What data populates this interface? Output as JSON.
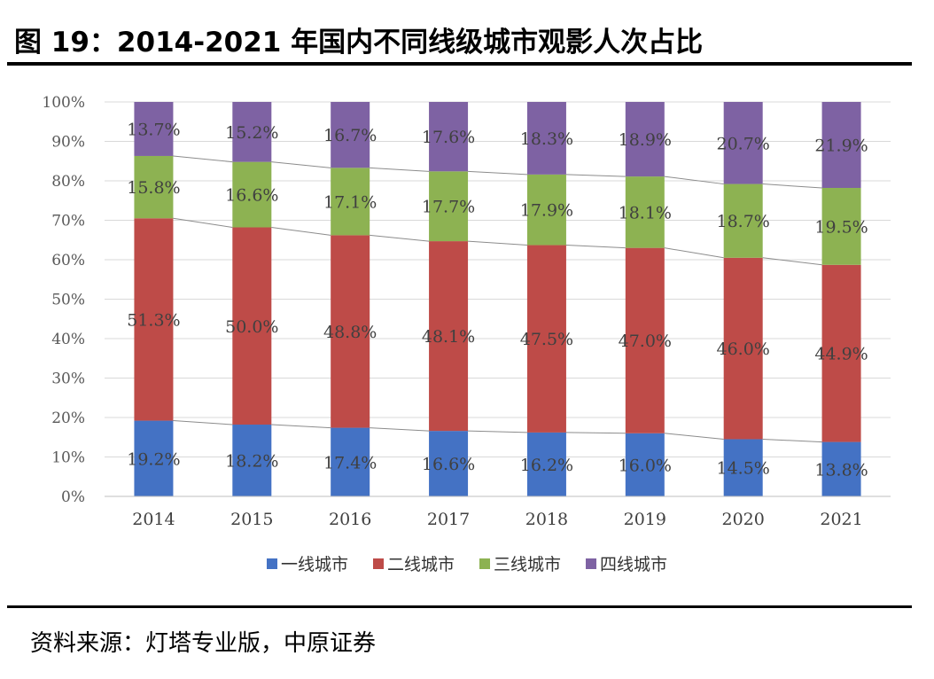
{
  "figure": {
    "title": "图 19：2014-2021 年国内不同线级城市观影人次占比",
    "source": "资料来源：灯塔专业版，中原证券"
  },
  "chart_data": {
    "type": "bar",
    "stacked": "percent",
    "title": "",
    "xlabel": "",
    "ylabel": "",
    "ylim": [
      0,
      100
    ],
    "y_ticks": [
      "0%",
      "10%",
      "20%",
      "30%",
      "40%",
      "50%",
      "60%",
      "70%",
      "80%",
      "90%",
      "100%"
    ],
    "grid": true,
    "legend_position": "bottom",
    "series_lines": true,
    "categories": [
      "2014",
      "2015",
      "2016",
      "2017",
      "2018",
      "2019",
      "2020",
      "2021"
    ],
    "series": [
      {
        "name": "一线城市",
        "color": "#4472C4",
        "values": [
          19.2,
          18.2,
          17.4,
          16.6,
          16.2,
          16.0,
          14.5,
          13.8
        ],
        "labels": [
          "19.2%",
          "18.2%",
          "17.4%",
          "16.6%",
          "16.2%",
          "16.0%",
          "14.5%",
          "13.8%"
        ]
      },
      {
        "name": "二线城市",
        "color": "#BE4B48",
        "values": [
          51.3,
          50.0,
          48.8,
          48.1,
          47.5,
          47.0,
          46.0,
          44.9
        ],
        "labels": [
          "51.3%",
          "50.0%",
          "48.8%",
          "48.1%",
          "47.5%",
          "47.0%",
          "46.0%",
          "44.9%"
        ]
      },
      {
        "name": "三线城市",
        "color": "#8DB252",
        "values": [
          15.8,
          16.6,
          17.1,
          17.7,
          17.9,
          18.1,
          18.7,
          19.5
        ],
        "labels": [
          "15.8%",
          "16.6%",
          "17.1%",
          "17.7%",
          "17.9%",
          "18.1%",
          "18.7%",
          "19.5%"
        ]
      },
      {
        "name": "四线城市",
        "color": "#7E62A3",
        "values": [
          13.7,
          15.2,
          16.7,
          17.6,
          18.3,
          18.9,
          20.7,
          21.9
        ],
        "labels": [
          "13.7%",
          "15.2%",
          "16.7%",
          "17.6%",
          "18.3%",
          "18.9%",
          "20.7%",
          "21.9%"
        ]
      }
    ]
  }
}
